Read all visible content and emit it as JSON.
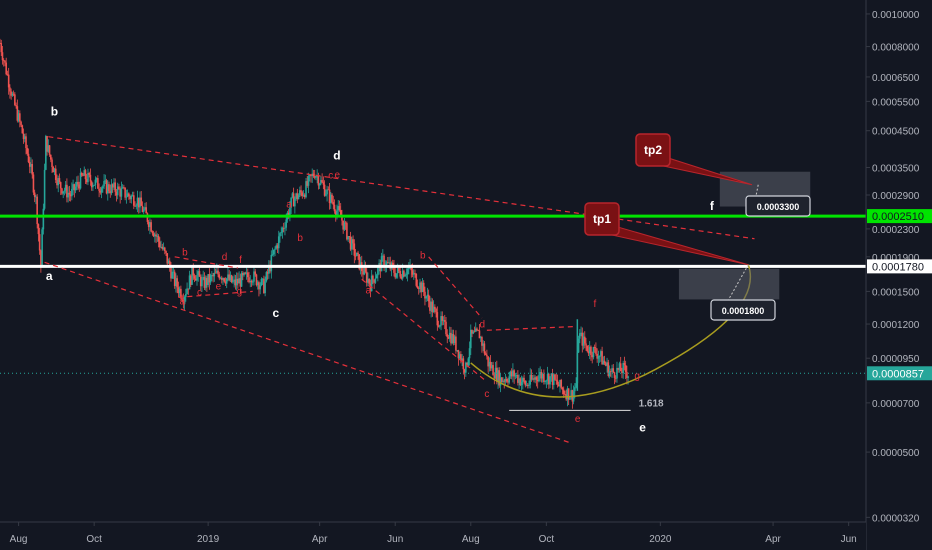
{
  "chart_data": {
    "type": "candlestick",
    "y_scale": "log",
    "ylim": [
      3.1e-05,
      0.0011
    ],
    "xlim": [
      "2018-07-17",
      "2020-06-15"
    ],
    "y_ticks": [
      "0.0010000",
      "0.0008000",
      "0.0006500",
      "0.0005500",
      "0.0004500",
      "0.0003500",
      "0.0002900",
      "0.0002510",
      "0.0002300",
      "0.0001900",
      "0.0001780",
      "0.0001500",
      "0.0001200",
      "0.0000950",
      "0.0000857",
      "0.0000700",
      "0.0000500",
      "0.0000320"
    ],
    "x_ticks": [
      {
        "date": "2018-08-01",
        "label": "Aug"
      },
      {
        "date": "2018-10-01",
        "label": "Oct"
      },
      {
        "date": "2019-01-01",
        "label": "2019"
      },
      {
        "date": "2019-04-01",
        "label": "Apr"
      },
      {
        "date": "2019-06-01",
        "label": "Jun"
      },
      {
        "date": "2019-08-01",
        "label": "Aug"
      },
      {
        "date": "2019-10-01",
        "label": "Oct"
      },
      {
        "date": "2020-01-01",
        "label": "2020"
      },
      {
        "date": "2020-04-01",
        "label": "Apr"
      },
      {
        "date": "2020-06-01",
        "label": "Jun"
      }
    ],
    "colors": {
      "up": "#26a69a",
      "down": "#ef5350",
      "background": "#131722",
      "resistance": "#00e400",
      "support": "#ffffff",
      "pattern": "#e5303a",
      "curve": "#a89c1f",
      "last_price": "#26a69a"
    },
    "price_path": [
      [
        "2018-07-17",
        0.00082
      ],
      [
        "2018-07-22",
        0.00068
      ],
      [
        "2018-07-28",
        0.00055
      ],
      [
        "2018-08-03",
        0.00046
      ],
      [
        "2018-08-10",
        0.00036
      ],
      [
        "2018-08-15",
        0.00028
      ],
      [
        "2018-08-19",
        0.000178
      ],
      [
        "2018-08-23",
        0.00042
      ],
      [
        "2018-08-27",
        0.00037
      ],
      [
        "2018-09-03",
        0.00031
      ],
      [
        "2018-09-12",
        0.00029
      ],
      [
        "2018-09-22",
        0.00033
      ],
      [
        "2018-10-05",
        0.00031
      ],
      [
        "2018-10-20",
        0.0003
      ],
      [
        "2018-11-05",
        0.00028
      ],
      [
        "2018-11-15",
        0.00024
      ],
      [
        "2018-11-28",
        0.00019
      ],
      [
        "2018-12-05",
        0.00016
      ],
      [
        "2018-12-12",
        0.000145
      ],
      [
        "2018-12-20",
        0.000172
      ],
      [
        "2018-12-28",
        0.000158
      ],
      [
        "2019-01-10",
        0.00017
      ],
      [
        "2019-01-22",
        0.000158
      ],
      [
        "2019-02-05",
        0.000168
      ],
      [
        "2019-02-15",
        0.000155
      ],
      [
        "2019-02-22",
        0.00019
      ],
      [
        "2019-03-02",
        0.00023
      ],
      [
        "2019-03-10",
        0.00028
      ],
      [
        "2019-03-20",
        0.0003
      ],
      [
        "2019-03-28",
        0.00034
      ],
      [
        "2019-04-08",
        0.00029
      ],
      [
        "2019-04-18",
        0.00025
      ],
      [
        "2019-04-28",
        0.0002
      ],
      [
        "2019-05-05",
        0.000175
      ],
      [
        "2019-05-12",
        0.000158
      ],
      [
        "2019-05-22",
        0.000185
      ],
      [
        "2019-06-02",
        0.00017
      ],
      [
        "2019-06-12",
        0.000175
      ],
      [
        "2019-06-22",
        0.000155
      ],
      [
        "2019-07-05",
        0.000125
      ],
      [
        "2019-07-18",
        0.000108
      ],
      [
        "2019-07-28",
        8.8e-05
      ],
      [
        "2019-08-01",
        0.00011
      ],
      [
        "2019-08-08",
        0.000112
      ],
      [
        "2019-08-15",
        9.2e-05
      ],
      [
        "2019-08-25",
        8.2e-05
      ],
      [
        "2019-09-05",
        8.5e-05
      ],
      [
        "2019-09-15",
        7.9e-05
      ],
      [
        "2019-09-25",
        8.5e-05
      ],
      [
        "2019-10-05",
        8.3e-05
      ],
      [
        "2019-10-15",
        7.6e-05
      ],
      [
        "2019-10-22",
        7.4e-05
      ],
      [
        "2019-10-25",
        8e-05
      ],
      [
        "2019-10-27",
        0.000112
      ],
      [
        "2019-11-03",
        0.000102
      ],
      [
        "2019-11-12",
        9.8e-05
      ],
      [
        "2019-11-22",
        8.6e-05
      ],
      [
        "2019-12-02",
        8.8e-05
      ],
      [
        "2019-12-06",
        8.57e-05
      ]
    ],
    "last_price": 8.57e-05,
    "horizontal_levels": [
      {
        "name": "green",
        "value": 0.000251
      },
      {
        "name": "white",
        "value": 0.000178
      }
    ],
    "wave_labels_white": [
      {
        "text": "b",
        "date": "2018-08-27",
        "value": 0.0005
      },
      {
        "text": "a",
        "date": "2018-08-23",
        "value": 0.000162
      },
      {
        "text": "d",
        "date": "2019-04-12",
        "value": 0.00037
      },
      {
        "text": "c",
        "date": "2019-02-22",
        "value": 0.000126
      },
      {
        "text": "f",
        "date": "2020-02-10",
        "value": 0.000262
      },
      {
        "text": "e",
        "date": "2019-12-15",
        "value": 5.75e-05
      }
    ],
    "wave_labels_red": [
      {
        "text": "a",
        "date": "2019-03-05",
        "value": 0.000266
      },
      {
        "text": "b",
        "date": "2019-03-14",
        "value": 0.000212
      },
      {
        "text": "c",
        "date": "2019-04-08",
        "value": 0.000325
      },
      {
        "text": "e",
        "date": "2019-04-13",
        "value": 0.000326
      },
      {
        "text": "b",
        "date": "2018-12-11",
        "value": 0.000192
      },
      {
        "text": "d",
        "date": "2019-01-12",
        "value": 0.000186
      },
      {
        "text": "f",
        "date": "2019-01-26",
        "value": 0.000182
      },
      {
        "text": "a",
        "date": "2018-12-09",
        "value": 0.000137
      },
      {
        "text": "c",
        "date": "2018-12-23",
        "value": 0.000146
      },
      {
        "text": "e",
        "date": "2019-01-07",
        "value": 0.000152
      },
      {
        "text": "g",
        "date": "2019-01-24",
        "value": 0.000147
      },
      {
        "text": "b",
        "date": "2019-06-21",
        "value": 0.000188
      },
      {
        "text": "a",
        "date": "2019-05-08",
        "value": 0.000148
      },
      {
        "text": "d",
        "date": "2019-08-08",
        "value": 0.000117
      },
      {
        "text": "c",
        "date": "2019-08-12",
        "value": 7.28e-05
      },
      {
        "text": "e",
        "date": "2019-10-24",
        "value": 6.15e-05
      },
      {
        "text": "f",
        "date": "2019-11-08",
        "value": 0.000135
      },
      {
        "text": "g",
        "date": "2019-12-11",
        "value": 8.25e-05
      }
    ],
    "trendlines": [
      {
        "name": "upper",
        "from": [
          "2018-08-25",
          0.000432
        ],
        "to": [
          "2020-03-17",
          0.000215
        ]
      },
      {
        "name": "lower",
        "from": [
          "2018-08-22",
          0.000183
        ],
        "to": [
          "2019-10-22",
          5.3e-05
        ]
      },
      {
        "name": "inner-upper",
        "from": [
          "2018-12-05",
          0.00019
        ],
        "to": [
          "2019-01-25",
          0.000176
        ]
      },
      {
        "name": "inner-lower",
        "from": [
          "2018-12-08",
          0.000144
        ],
        "to": [
          "2019-02-06",
          0.00015
        ]
      },
      {
        "name": "inner-b-c",
        "from": [
          "2019-06-28",
          0.00019
        ],
        "to": [
          "2019-08-10",
          0.000125
        ]
      },
      {
        "name": "inner-a-c",
        "from": [
          "2019-05-05",
          0.000163
        ],
        "to": [
          "2019-08-12",
          8.2e-05
        ]
      },
      {
        "name": "inner-d-f",
        "from": [
          "2019-08-14",
          0.000115
        ],
        "to": [
          "2019-10-25",
          0.000118
        ]
      }
    ],
    "curve": {
      "points": [
        [
          "2019-08-01",
          9.2e-05
        ],
        [
          "2019-10-01",
          6.68e-05
        ],
        [
          "2019-12-28",
          8.8e-05
        ],
        [
          "2020-03-12",
          0.00018
        ]
      ]
    },
    "fib_line": {
      "label": "1.618",
      "value": 6.65e-05,
      "from": "2019-09-01",
      "to": "2019-12-08"
    },
    "target_boxes": [
      {
        "name": "tp1-box",
        "from": "2020-01-16",
        "to": "2020-04-06",
        "top": 0.000175,
        "bottom": 0.000142
      },
      {
        "name": "tp2-box",
        "from": "2020-02-18",
        "to": "2020-05-01",
        "top": 0.00034,
        "bottom": 0.000268
      }
    ],
    "callouts": [
      {
        "label": "tp1",
        "anchor": [
          "2020-03-12",
          0.00018
        ]
      },
      {
        "label": "tp2",
        "anchor": [
          "2020-03-15",
          0.000311
        ]
      }
    ],
    "price_labels": [
      {
        "text": "0.0001800",
        "anchor": [
          "2020-03-12",
          0.00018
        ]
      },
      {
        "text": "0.0003300",
        "anchor": [
          "2020-03-20",
          0.000311
        ]
      }
    ]
  }
}
